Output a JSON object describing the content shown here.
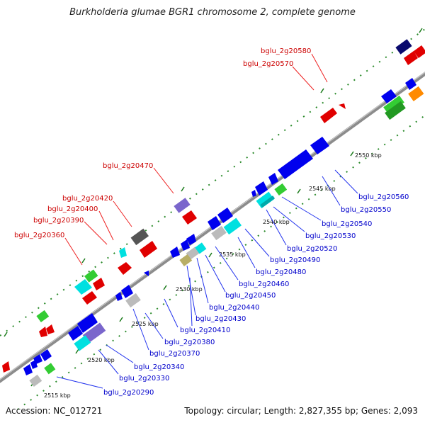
{
  "title": "Burkholderia glumae BGR1 chromosome 2, complete genome",
  "footer": {
    "accession": "Accession: NC_012721",
    "stats": "Topology: circular; Length: 2,827,355 bp; Genes: 2,093"
  },
  "colors": {
    "forward_label": "#cc0000",
    "reverse_label": "#0000cc",
    "backbone": "#8c8c8c"
  },
  "scale_labels": [
    "2515 kbp",
    "2520 kbp",
    "2525 kbp",
    "2530 kbp",
    "2535 kbp",
    "2540 kbp",
    "2545 kbp",
    "2550 kbp"
  ],
  "forward_gene_labels": [
    "bglu_2g20580",
    "bglu_2g20570",
    "bglu_2g20470",
    "bglu_2g20420",
    "bglu_2g20400",
    "bglu_2g20390",
    "bglu_2g20360"
  ],
  "reverse_gene_labels": [
    "bglu_2g20560",
    "bglu_2g20550",
    "bglu_2g20540",
    "bglu_2g20530",
    "bglu_2g20520",
    "bglu_2g20490",
    "bglu_2g20480",
    "bglu_2g20460",
    "bglu_2g20450",
    "bglu_2g20440",
    "bglu_2g20430",
    "bglu_2g20410",
    "bglu_2g20380",
    "bglu_2g20370",
    "bglu_2g20340",
    "bglu_2g20330",
    "bglu_2g20290"
  ]
}
